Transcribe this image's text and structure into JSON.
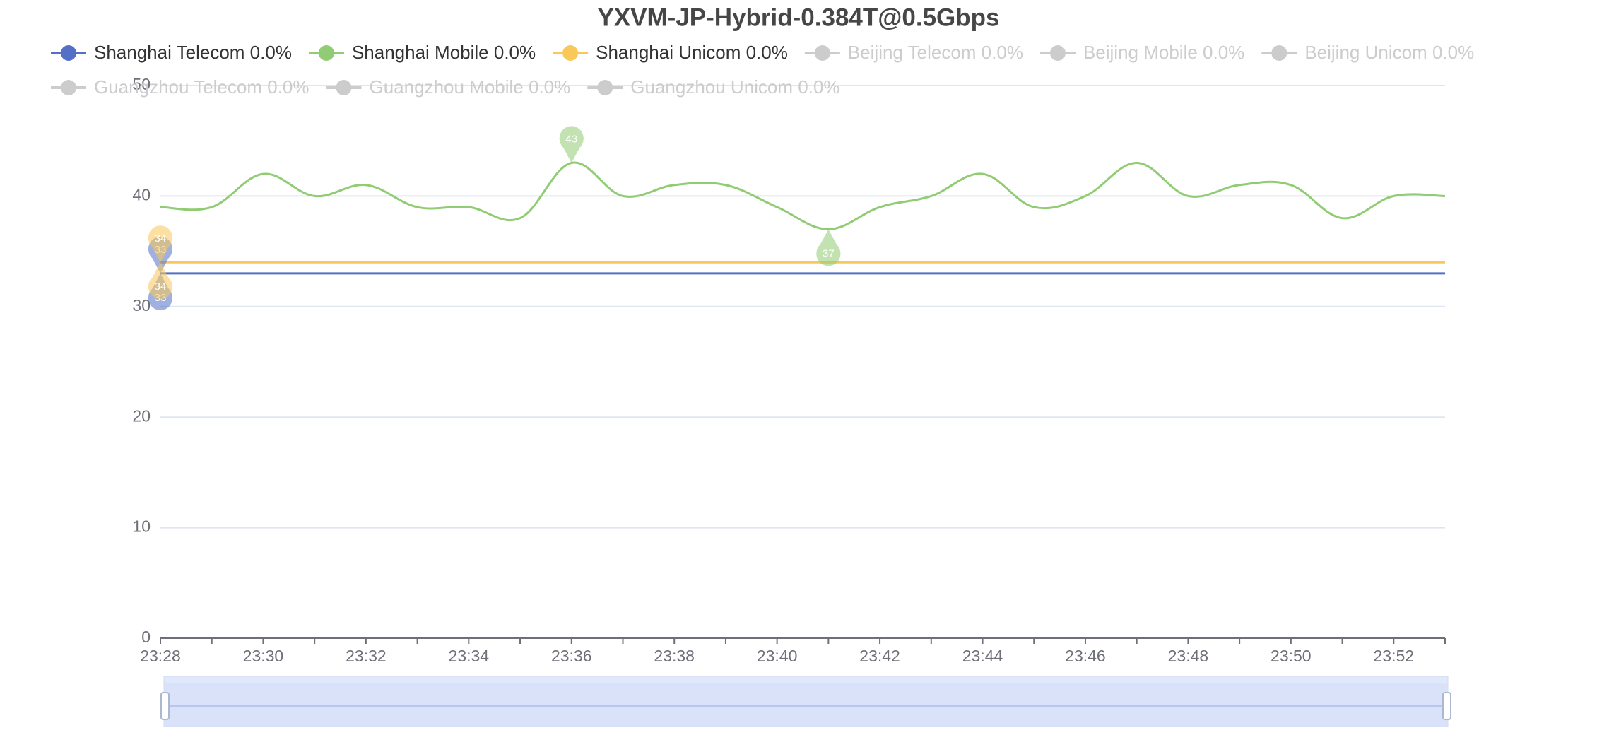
{
  "chart_data": {
    "type": "line",
    "title": "YXVM-JP-Hybrid-0.384T@0.5Gbps",
    "categories": [
      "23:28",
      null,
      "23:30",
      null,
      "23:32",
      null,
      "23:34",
      null,
      "23:36",
      null,
      "23:38",
      null,
      "23:40",
      null,
      "23:42",
      null,
      "23:44",
      null,
      "23:46",
      null,
      "23:48",
      null,
      "23:50",
      null,
      "23:52",
      null
    ],
    "series": [
      {
        "name": "Shanghai Telecom 0.0%",
        "color": "#5470c6",
        "values": [
          33,
          33,
          33,
          33,
          33,
          33,
          33,
          33,
          33,
          33,
          33,
          33,
          33,
          33,
          33,
          33,
          33,
          33,
          33,
          33,
          33,
          33,
          33,
          33,
          33,
          33
        ],
        "max": 33,
        "min": 33
      },
      {
        "name": "Shanghai Mobile 0.0%",
        "color": "#91cc75",
        "values": [
          39,
          39,
          42,
          40,
          41,
          39,
          39,
          38,
          43,
          40,
          41,
          41,
          39,
          37,
          39,
          40,
          42,
          39,
          40,
          43,
          40,
          41,
          41,
          38,
          40,
          40
        ],
        "max": 43,
        "min": 37
      },
      {
        "name": "Shanghai Unicom 0.0%",
        "color": "#fac858",
        "values": [
          34,
          34,
          34,
          34,
          34,
          34,
          34,
          34,
          34,
          34,
          34,
          34,
          34,
          34,
          34,
          34,
          34,
          34,
          34,
          34,
          34,
          34,
          34,
          34,
          34,
          34
        ],
        "max": 34,
        "min": 34
      }
    ],
    "hidden_legend": [
      "Beijing Telecom 0.0%",
      "Beijing Mobile 0.0%",
      "Beijing Unicom 0.0%",
      "Guangzhou Telecom 0.0%",
      "Guangzhou Mobile 0.0%",
      "Guangzhou Unicom 0.0%"
    ],
    "hidden_color": "#cccccc",
    "ylim": [
      0,
      50
    ],
    "yticks": [
      0,
      10,
      20,
      30,
      40,
      50
    ],
    "grid": true
  }
}
